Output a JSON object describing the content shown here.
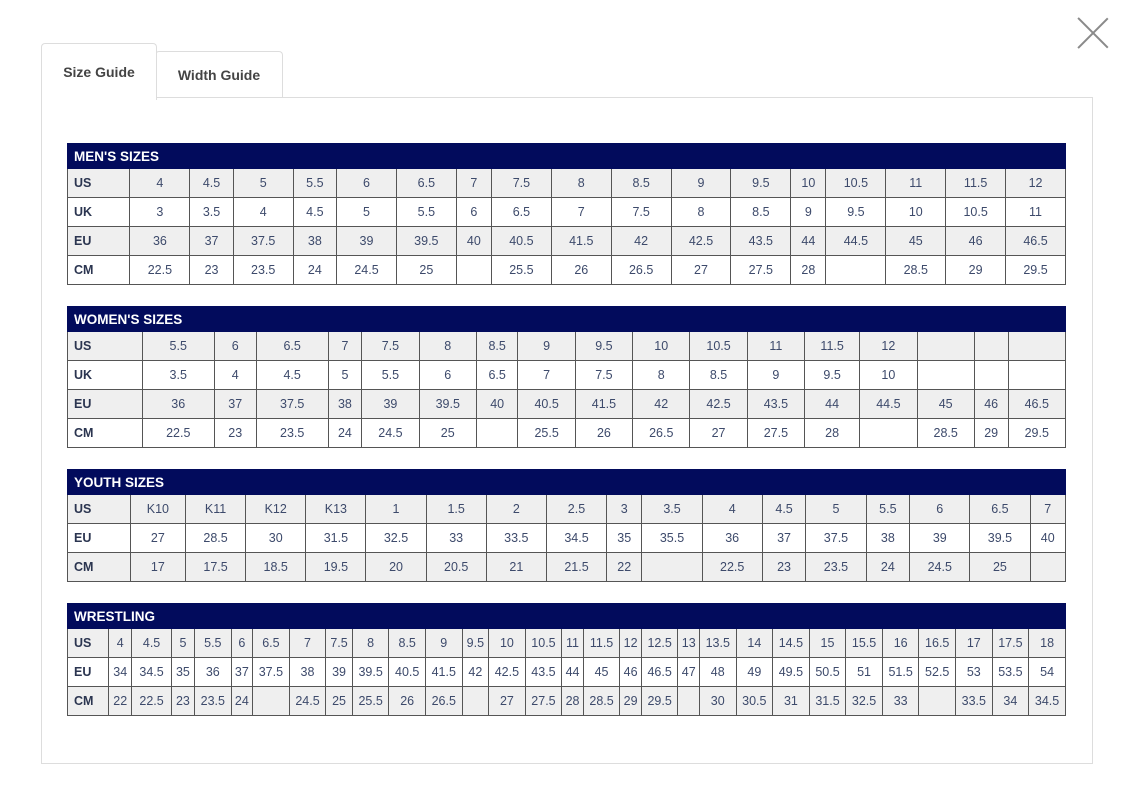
{
  "tabs": [
    {
      "label": "Size Guide",
      "active": true
    },
    {
      "label": "Width Guide",
      "active": false
    }
  ],
  "colors": {
    "header": "#020b5c",
    "row_alt": "#efefef"
  },
  "close_icon": "close-x-icon",
  "tables": [
    {
      "title": "MEN'S SIZES",
      "title_span": 4,
      "rows": [
        {
          "label": "US",
          "values": [
            "4",
            "4.5",
            "5",
            "5.5",
            "6",
            "6.5",
            "7",
            "7.5",
            "8",
            "8.5",
            "9",
            "9.5",
            "10",
            "10.5",
            "11",
            "11.5",
            "12"
          ]
        },
        {
          "label": "UK",
          "values": [
            "3",
            "3.5",
            "4",
            "4.5",
            "5",
            "5.5",
            "6",
            "6.5",
            "7",
            "7.5",
            "8",
            "8.5",
            "9",
            "9.5",
            "10",
            "10.5",
            "11"
          ]
        },
        {
          "label": "EU",
          "values": [
            "36",
            "37",
            "37.5",
            "38",
            "39",
            "39.5",
            "40",
            "40.5",
            "41.5",
            "42",
            "42.5",
            "43.5",
            "44",
            "44.5",
            "45",
            "46",
            "46.5"
          ]
        },
        {
          "label": "CM",
          "values": [
            "22.5",
            "23",
            "23.5",
            "24",
            "24.5",
            "25",
            "",
            "25.5",
            "26",
            "26.5",
            "27",
            "27.5",
            "28",
            "",
            "28.5",
            "29",
            "29.5"
          ]
        }
      ]
    },
    {
      "title": "WOMEN'S SIZES",
      "title_span": 4,
      "rows": [
        {
          "label": "US",
          "values": [
            "5.5",
            "6",
            "6.5",
            "7",
            "7.5",
            "8",
            "8.5",
            "9",
            "9.5",
            "10",
            "10.5",
            "11",
            "11.5",
            "12",
            "",
            "",
            ""
          ]
        },
        {
          "label": "UK",
          "values": [
            "3.5",
            "4",
            "4.5",
            "5",
            "5.5",
            "6",
            "6.5",
            "7",
            "7.5",
            "8",
            "8.5",
            "9",
            "9.5",
            "10",
            "",
            "",
            ""
          ]
        },
        {
          "label": "EU",
          "values": [
            "36",
            "37",
            "37.5",
            "38",
            "39",
            "39.5",
            "40",
            "40.5",
            "41.5",
            "42",
            "42.5",
            "43.5",
            "44",
            "44.5",
            "45",
            "46",
            "46.5"
          ]
        },
        {
          "label": "CM",
          "values": [
            "22.5",
            "23",
            "23.5",
            "24",
            "24.5",
            "25",
            "",
            "25.5",
            "26",
            "26.5",
            "27",
            "27.5",
            "28",
            "",
            "28.5",
            "29",
            "29.5"
          ]
        }
      ]
    },
    {
      "title": "YOUTH SIZES",
      "title_span": 4,
      "rows": [
        {
          "label": "US",
          "values": [
            "K10",
            "K11",
            "K12",
            "K13",
            "1",
            "1.5",
            "2",
            "2.5",
            "3",
            "3.5",
            "4",
            "4.5",
            "5",
            "5.5",
            "6",
            "6.5",
            "7"
          ]
        },
        {
          "label": "EU",
          "values": [
            "27",
            "28.5",
            "30",
            "31.5",
            "32.5",
            "33",
            "33.5",
            "34.5",
            "35",
            "35.5",
            "36",
            "37",
            "37.5",
            "38",
            "39",
            "39.5",
            "40"
          ]
        },
        {
          "label": "CM",
          "values": [
            "17",
            "17.5",
            "18.5",
            "19.5",
            "20",
            "20.5",
            "21",
            "21.5",
            "22",
            "",
            "22.5",
            "23",
            "23.5",
            "24",
            "24.5",
            "25",
            ""
          ]
        }
      ]
    },
    {
      "title": "WRESTLING",
      "title_span": 4,
      "rows": [
        {
          "label": "US",
          "values": [
            "4",
            "4.5",
            "5",
            "5.5",
            "6",
            "6.5",
            "7",
            "7.5",
            "8",
            "8.5",
            "9",
            "9.5",
            "10",
            "10.5",
            "11",
            "11.5",
            "12",
            "12.5",
            "13",
            "13.5",
            "14",
            "14.5",
            "15",
            "15.5",
            "16",
            "16.5",
            "17",
            "17.5",
            "18"
          ]
        },
        {
          "label": "EU",
          "values": [
            "34",
            "34.5",
            "35",
            "36",
            "37",
            "37.5",
            "38",
            "39",
            "39.5",
            "40.5",
            "41.5",
            "42",
            "42.5",
            "43.5",
            "44",
            "45",
            "46",
            "46.5",
            "47",
            "48",
            "49",
            "49.5",
            "50.5",
            "51",
            "51.5",
            "52.5",
            "53",
            "53.5",
            "54"
          ]
        },
        {
          "label": "CM",
          "values": [
            "22",
            "22.5",
            "23",
            "23.5",
            "24",
            "",
            "24.5",
            "25",
            "25.5",
            "26",
            "26.5",
            "",
            "27",
            "27.5",
            "28",
            "28.5",
            "29",
            "29.5",
            "",
            "30",
            "30.5",
            "31",
            "31.5",
            "32.5",
            "33",
            "",
            "33.5",
            "34",
            "34.5"
          ]
        }
      ]
    }
  ]
}
